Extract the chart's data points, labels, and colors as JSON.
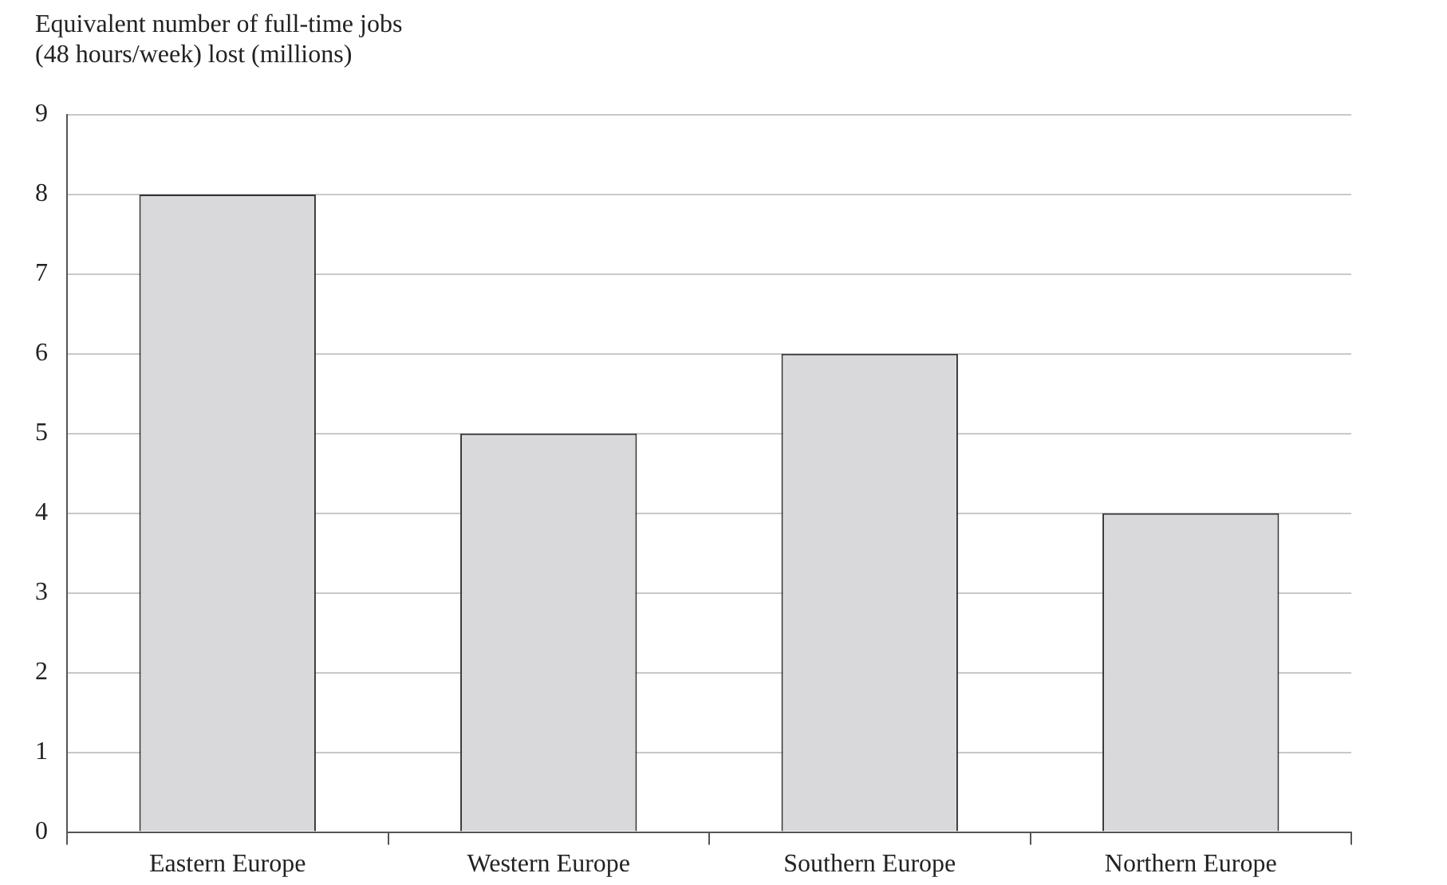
{
  "chart_data": {
    "type": "bar",
    "ylabel": "Equivalent number of full-time jobs\n(48 hours/week) lost (millions)",
    "categories": [
      "Eastern Europe",
      "Western Europe",
      "Southern Europe",
      "Northern Europe"
    ],
    "values": [
      8,
      5,
      6,
      4
    ],
    "color": "#d9d9db",
    "ylim": [
      0,
      9
    ],
    "yticks": [
      0,
      1,
      2,
      3,
      4,
      5,
      6,
      7,
      8,
      9
    ],
    "grid": "y",
    "legend": false
  }
}
